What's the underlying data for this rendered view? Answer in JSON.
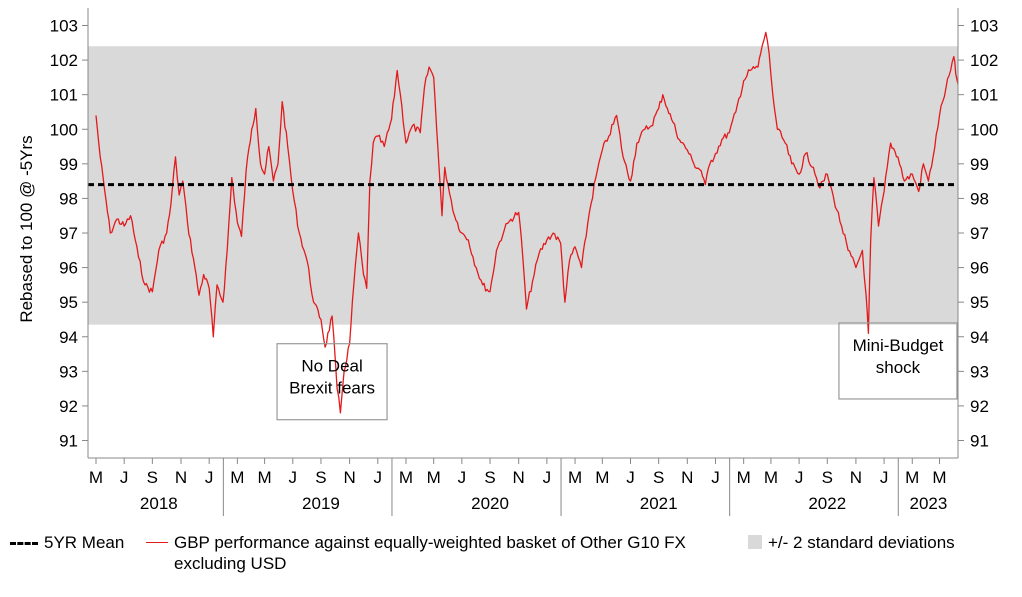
{
  "chart_data": {
    "type": "line",
    "ylabel": "Rebased to 100 @ -5Yrs",
    "ylim": [
      91,
      103
    ],
    "yticks": [
      91,
      92,
      93,
      94,
      95,
      96,
      97,
      98,
      99,
      100,
      101,
      102,
      103
    ],
    "xlim": [
      "2018-03-01",
      "2023-04-10"
    ],
    "x_month_ticks": [
      {
        "date": "2018-03-01",
        "label": "M"
      },
      {
        "date": "2018-05-01",
        "label": "J"
      },
      {
        "date": "2018-07-01",
        "label": "S"
      },
      {
        "date": "2018-09-01",
        "label": "N"
      },
      {
        "date": "2018-11-01",
        "label": "J"
      },
      {
        "date": "2019-01-01",
        "label": "M"
      },
      {
        "date": "2019-03-01",
        "label": "M"
      },
      {
        "date": "2019-05-01",
        "label": "J"
      },
      {
        "date": "2019-07-01",
        "label": "S"
      },
      {
        "date": "2019-09-01",
        "label": "N"
      },
      {
        "date": "2019-11-01",
        "label": "J"
      },
      {
        "date": "2020-01-01",
        "label": "M"
      },
      {
        "date": "2020-03-01",
        "label": "M"
      },
      {
        "date": "2020-05-01",
        "label": "J"
      },
      {
        "date": "2020-07-01",
        "label": "S"
      },
      {
        "date": "2020-09-01",
        "label": "N"
      },
      {
        "date": "2020-11-01",
        "label": "J"
      },
      {
        "date": "2021-01-01",
        "label": "M"
      },
      {
        "date": "2021-03-01",
        "label": "M"
      },
      {
        "date": "2021-05-01",
        "label": "J"
      },
      {
        "date": "2021-07-01",
        "label": "S"
      },
      {
        "date": "2021-09-01",
        "label": "N"
      },
      {
        "date": "2021-11-01",
        "label": "J"
      },
      {
        "date": "2022-01-01",
        "label": "M"
      },
      {
        "date": "2022-03-01",
        "label": "M"
      },
      {
        "date": "2022-05-01",
        "label": "J"
      },
      {
        "date": "2022-07-01",
        "label": "S"
      },
      {
        "date": "2022-09-01",
        "label": "N"
      },
      {
        "date": "2022-11-01",
        "label": "J"
      },
      {
        "date": "2023-01-01",
        "label": "M"
      },
      {
        "date": "2023-03-01",
        "label": "M"
      }
    ],
    "year_labels": [
      {
        "label": "2018",
        "date": "2018-07-15"
      },
      {
        "label": "2019",
        "date": "2019-07-01"
      },
      {
        "label": "2020",
        "date": "2020-07-01"
      },
      {
        "label": "2021",
        "date": "2021-07-01"
      },
      {
        "label": "2022",
        "date": "2022-07-01"
      },
      {
        "label": "2023",
        "date": "2023-02-05"
      }
    ],
    "mean": 98.4,
    "band": [
      94.35,
      102.4
    ],
    "series": [
      {
        "name": "GBP performance against equally-weighted basket of Other G10 FX excluding USD",
        "color": "#e31a1c",
        "points": [
          [
            "2018-03-01",
            100.4
          ],
          [
            "2018-03-10",
            99.2
          ],
          [
            "2018-03-20",
            98.2
          ],
          [
            "2018-04-01",
            97.0
          ],
          [
            "2018-04-15",
            97.4
          ],
          [
            "2018-05-01",
            97.2
          ],
          [
            "2018-05-15",
            97.5
          ],
          [
            "2018-06-01",
            96.3
          ],
          [
            "2018-06-15",
            95.5
          ],
          [
            "2018-07-01",
            95.3
          ],
          [
            "2018-07-15",
            96.5
          ],
          [
            "2018-08-01",
            97.0
          ],
          [
            "2018-08-10",
            97.8
          ],
          [
            "2018-08-20",
            99.2
          ],
          [
            "2018-08-28",
            98.1
          ],
          [
            "2018-09-05",
            98.5
          ],
          [
            "2018-09-15",
            97.3
          ],
          [
            "2018-10-01",
            96.0
          ],
          [
            "2018-10-10",
            95.2
          ],
          [
            "2018-10-20",
            95.8
          ],
          [
            "2018-11-01",
            95.4
          ],
          [
            "2018-11-10",
            94.0
          ],
          [
            "2018-11-18",
            95.5
          ],
          [
            "2018-12-01",
            95.0
          ],
          [
            "2018-12-10",
            96.5
          ],
          [
            "2018-12-20",
            98.6
          ],
          [
            "2019-01-01",
            97.3
          ],
          [
            "2019-01-10",
            96.9
          ],
          [
            "2019-01-20",
            98.8
          ],
          [
            "2019-02-01",
            100.0
          ],
          [
            "2019-02-10",
            100.6
          ],
          [
            "2019-02-20",
            99.0
          ],
          [
            "2019-03-01",
            98.7
          ],
          [
            "2019-03-10",
            99.5
          ],
          [
            "2019-03-20",
            98.5
          ],
          [
            "2019-03-30",
            99.0
          ],
          [
            "2019-04-08",
            100.8
          ],
          [
            "2019-04-20",
            99.5
          ],
          [
            "2019-05-01",
            98.2
          ],
          [
            "2019-05-15",
            97.0
          ],
          [
            "2019-06-01",
            96.2
          ],
          [
            "2019-06-15",
            95.0
          ],
          [
            "2019-07-01",
            94.5
          ],
          [
            "2019-07-10",
            93.7
          ],
          [
            "2019-07-25",
            94.6
          ],
          [
            "2019-08-05",
            92.5
          ],
          [
            "2019-08-12",
            91.8
          ],
          [
            "2019-08-20",
            93.0
          ],
          [
            "2019-09-01",
            93.8
          ],
          [
            "2019-09-10",
            95.5
          ],
          [
            "2019-09-20",
            97.0
          ],
          [
            "2019-10-01",
            95.8
          ],
          [
            "2019-10-08",
            95.4
          ],
          [
            "2019-10-15",
            98.5
          ],
          [
            "2019-10-22",
            99.6
          ],
          [
            "2019-11-01",
            99.8
          ],
          [
            "2019-11-15",
            99.5
          ],
          [
            "2019-12-01",
            100.3
          ],
          [
            "2019-12-13",
            101.7
          ],
          [
            "2019-12-20",
            101.0
          ],
          [
            "2020-01-01",
            99.6
          ],
          [
            "2020-01-15",
            100.1
          ],
          [
            "2020-02-01",
            99.9
          ],
          [
            "2020-02-10",
            101.2
          ],
          [
            "2020-02-20",
            101.8
          ],
          [
            "2020-03-01",
            101.5
          ],
          [
            "2020-03-10",
            99.5
          ],
          [
            "2020-03-19",
            97.5
          ],
          [
            "2020-03-25",
            98.9
          ],
          [
            "2020-04-01",
            98.4
          ],
          [
            "2020-04-15",
            97.5
          ],
          [
            "2020-05-01",
            97.0
          ],
          [
            "2020-05-15",
            96.8
          ],
          [
            "2020-06-01",
            96.0
          ],
          [
            "2020-06-15",
            95.5
          ],
          [
            "2020-07-01",
            95.3
          ],
          [
            "2020-07-15",
            96.5
          ],
          [
            "2020-08-01",
            97.1
          ],
          [
            "2020-08-15",
            97.4
          ],
          [
            "2020-09-01",
            97.6
          ],
          [
            "2020-09-10",
            96.3
          ],
          [
            "2020-09-18",
            94.8
          ],
          [
            "2020-10-01",
            95.6
          ],
          [
            "2020-10-15",
            96.4
          ],
          [
            "2020-11-01",
            96.8
          ],
          [
            "2020-11-15",
            97.0
          ],
          [
            "2020-12-01",
            96.7
          ],
          [
            "2020-12-10",
            95.0
          ],
          [
            "2020-12-20",
            96.2
          ],
          [
            "2021-01-01",
            96.6
          ],
          [
            "2021-01-15",
            96.0
          ],
          [
            "2021-02-01",
            97.6
          ],
          [
            "2021-02-15",
            98.6
          ],
          [
            "2021-03-01",
            99.4
          ],
          [
            "2021-03-15",
            99.8
          ],
          [
            "2021-04-01",
            100.4
          ],
          [
            "2021-04-15",
            99.2
          ],
          [
            "2021-05-01",
            98.5
          ],
          [
            "2021-05-15",
            99.6
          ],
          [
            "2021-06-01",
            100.0
          ],
          [
            "2021-06-15",
            100.1
          ],
          [
            "2021-07-01",
            100.6
          ],
          [
            "2021-07-10",
            101.0
          ],
          [
            "2021-07-20",
            100.6
          ],
          [
            "2021-08-01",
            100.2
          ],
          [
            "2021-08-15",
            99.7
          ],
          [
            "2021-09-01",
            99.4
          ],
          [
            "2021-09-15",
            99.0
          ],
          [
            "2021-10-01",
            98.8
          ],
          [
            "2021-10-10",
            98.4
          ],
          [
            "2021-10-20",
            99.0
          ],
          [
            "2021-11-01",
            99.3
          ],
          [
            "2021-11-15",
            99.7
          ],
          [
            "2021-12-01",
            99.9
          ],
          [
            "2021-12-15",
            100.5
          ],
          [
            "2022-01-01",
            101.4
          ],
          [
            "2022-01-15",
            101.7
          ],
          [
            "2022-02-01",
            101.8
          ],
          [
            "2022-02-10",
            102.4
          ],
          [
            "2022-02-18",
            102.8
          ],
          [
            "2022-02-25",
            102.2
          ],
          [
            "2022-03-05",
            101.0
          ],
          [
            "2022-03-15",
            100.0
          ],
          [
            "2022-04-01",
            99.6
          ],
          [
            "2022-04-15",
            99.0
          ],
          [
            "2022-05-01",
            98.7
          ],
          [
            "2022-05-15",
            99.3
          ],
          [
            "2022-06-01",
            98.9
          ],
          [
            "2022-06-15",
            98.3
          ],
          [
            "2022-07-01",
            98.7
          ],
          [
            "2022-07-15",
            98.0
          ],
          [
            "2022-08-01",
            97.2
          ],
          [
            "2022-08-15",
            96.5
          ],
          [
            "2022-09-01",
            96.0
          ],
          [
            "2022-09-15",
            96.5
          ],
          [
            "2022-09-23",
            95.2
          ],
          [
            "2022-09-28",
            94.1
          ],
          [
            "2022-10-03",
            96.8
          ],
          [
            "2022-10-10",
            98.6
          ],
          [
            "2022-10-20",
            97.2
          ],
          [
            "2022-11-01",
            98.2
          ],
          [
            "2022-11-15",
            99.6
          ],
          [
            "2022-12-01",
            99.2
          ],
          [
            "2022-12-15",
            98.5
          ],
          [
            "2023-01-01",
            98.7
          ],
          [
            "2023-01-15",
            98.2
          ],
          [
            "2023-01-25",
            99.0
          ],
          [
            "2023-02-05",
            98.5
          ],
          [
            "2023-02-15",
            99.2
          ],
          [
            "2023-03-01",
            100.4
          ],
          [
            "2023-03-15",
            101.2
          ],
          [
            "2023-03-25",
            101.7
          ],
          [
            "2023-04-01",
            102.1
          ],
          [
            "2023-04-05",
            101.6
          ],
          [
            "2023-04-10",
            101.3
          ]
        ]
      }
    ],
    "annotations": [
      {
        "text": "No Deal\nBrexit fears",
        "date": "2019-07-25",
        "y": 92.7
      },
      {
        "text": "Mini-Budget\nshock",
        "date": "2022-12-01",
        "y": 93.3
      }
    ]
  },
  "legend": {
    "mean_label": "5YR Mean",
    "series_label": "GBP performance against equally-weighted basket of Other G10 FX excluding USD",
    "band_label": "+/- 2 standard deviations"
  },
  "colors": {
    "series": "#e31a1c",
    "band": "#d9d9d9",
    "mean": "#000000"
  }
}
